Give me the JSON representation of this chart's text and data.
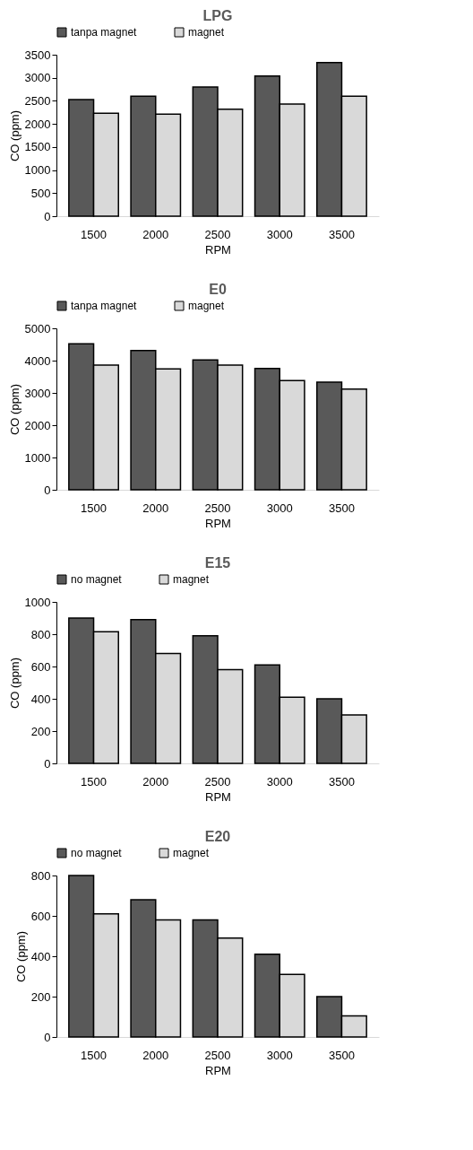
{
  "chart_data": [
    {
      "type": "bar",
      "title": "LPG",
      "xlabel": "RPM",
      "ylabel": "CO (ppm)",
      "categories": [
        "1500",
        "2000",
        "2500",
        "3000",
        "3500"
      ],
      "series": [
        {
          "name": "tanpa magnet",
          "color": "#595959",
          "values": [
            2530,
            2600,
            2800,
            3040,
            3330
          ]
        },
        {
          "name": "magnet",
          "color": "#d9d9d9",
          "values": [
            2230,
            2210,
            2320,
            2430,
            2600
          ]
        }
      ],
      "ylim": [
        0,
        3500
      ],
      "yticks": [
        0,
        500,
        1000,
        1500,
        2000,
        2500,
        3000,
        3500
      ],
      "legend": "top",
      "grid": false
    },
    {
      "type": "bar",
      "title": "E0",
      "xlabel": "RPM",
      "ylabel": "CO (ppm)",
      "categories": [
        "1500",
        "2000",
        "2500",
        "3000",
        "3500"
      ],
      "series": [
        {
          "name": "tanpa magnet",
          "color": "#595959",
          "values": [
            4520,
            4310,
            4020,
            3760,
            3330
          ]
        },
        {
          "name": "magnet",
          "color": "#d9d9d9",
          "values": [
            3860,
            3740,
            3860,
            3380,
            3120
          ]
        }
      ],
      "ylim": [
        0,
        5000
      ],
      "yticks": [
        0,
        1000,
        2000,
        3000,
        4000,
        5000
      ],
      "legend": "top",
      "grid": false
    },
    {
      "type": "bar",
      "title": "E15",
      "xlabel": "RPM",
      "ylabel": "CO (ppm)",
      "categories": [
        "1500",
        "2000",
        "2500",
        "3000",
        "3500"
      ],
      "series": [
        {
          "name": "no magnet",
          "color": "#595959",
          "values": [
            900,
            890,
            790,
            610,
            400
          ]
        },
        {
          "name": "magnet",
          "color": "#d9d9d9",
          "values": [
            815,
            680,
            580,
            410,
            300
          ]
        }
      ],
      "ylim": [
        0,
        1000
      ],
      "yticks": [
        0,
        200,
        400,
        600,
        800,
        1000
      ],
      "legend": "top",
      "grid": false
    },
    {
      "type": "bar",
      "title": "E20",
      "xlabel": "RPM",
      "ylabel": "CO (ppm)",
      "categories": [
        "1500",
        "2000",
        "2500",
        "3000",
        "3500"
      ],
      "series": [
        {
          "name": "no magnet",
          "color": "#595959",
          "values": [
            800,
            680,
            580,
            410,
            200
          ]
        },
        {
          "name": "magnet",
          "color": "#d9d9d9",
          "values": [
            610,
            580,
            490,
            310,
            105
          ]
        }
      ],
      "ylim": [
        0,
        800
      ],
      "yticks": [
        0,
        200,
        400,
        600,
        800
      ],
      "legend": "top",
      "grid": false
    }
  ]
}
